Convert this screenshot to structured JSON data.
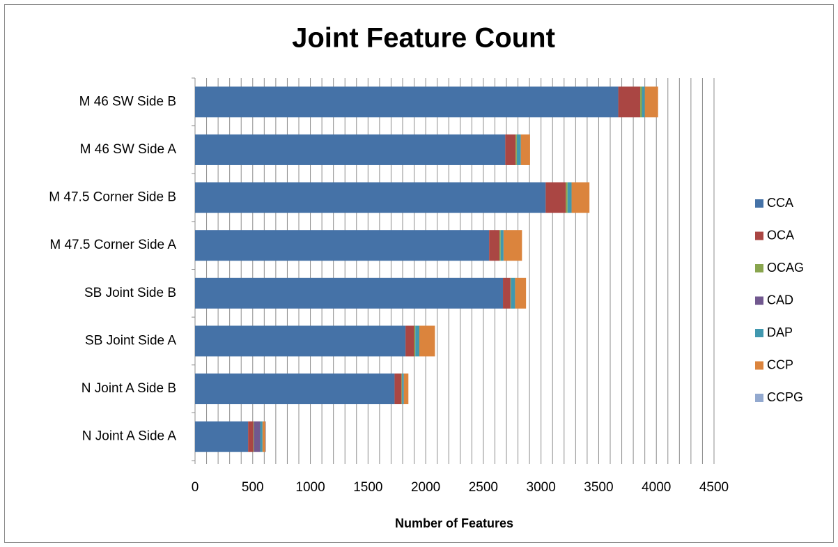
{
  "chart_data": {
    "type": "stacked-bar-horizontal",
    "title": "Joint Feature Count",
    "x_label": "Number of Features",
    "categories": [
      "M 46 SW Side B",
      "M 46 SW Side A",
      "M 47.5 Corner Side B",
      "M 47.5 Corner Side A",
      "SB Joint Side B",
      "SB Joint Side A",
      "N Joint A Side B",
      "N Joint A Side A"
    ],
    "series": [
      {
        "name": "CCA",
        "color": "#4572a7",
        "values": [
          3670,
          2690,
          3040,
          2550,
          2670,
          1825,
          1730,
          460
        ]
      },
      {
        "name": "OCA",
        "color": "#aa4643",
        "values": [
          190,
          90,
          175,
          90,
          65,
          75,
          60,
          45
        ]
      },
      {
        "name": "OCAG",
        "color": "#89a54e",
        "values": [
          15,
          10,
          15,
          10,
          5,
          10,
          5,
          5
        ]
      },
      {
        "name": "CAD",
        "color": "#71588f",
        "values": [
          0,
          0,
          0,
          0,
          0,
          0,
          0,
          55
        ]
      },
      {
        "name": "DAP",
        "color": "#4198af",
        "values": [
          25,
          35,
          35,
          25,
          35,
          35,
          15,
          20
        ]
      },
      {
        "name": "CCP",
        "color": "#db843d",
        "values": [
          115,
          80,
          155,
          160,
          95,
          135,
          40,
          25
        ]
      },
      {
        "name": "CCPG",
        "color": "#93a9cf",
        "values": [
          0,
          0,
          0,
          0,
          0,
          0,
          0,
          5
        ]
      }
    ],
    "xlim": [
      0,
      4500
    ],
    "xticks": [
      0,
      500,
      1000,
      1500,
      2000,
      2500,
      3000,
      3500,
      4000,
      4500
    ],
    "x_minor_grid": [
      0,
      100,
      200,
      300,
      400,
      500,
      600,
      700,
      800,
      900,
      1000,
      1100,
      1200,
      1300,
      1400,
      1500,
      1600,
      1700,
      1800,
      1900,
      2000,
      2100,
      2200,
      2300,
      2400,
      2500,
      2600,
      2700,
      2800,
      2900,
      3000,
      3100,
      3200,
      3300,
      3400,
      3500,
      3600,
      3700,
      3800,
      3900,
      4000,
      4100,
      4200,
      4300,
      4400,
      4500
    ],
    "grid": true,
    "legend": "right"
  }
}
